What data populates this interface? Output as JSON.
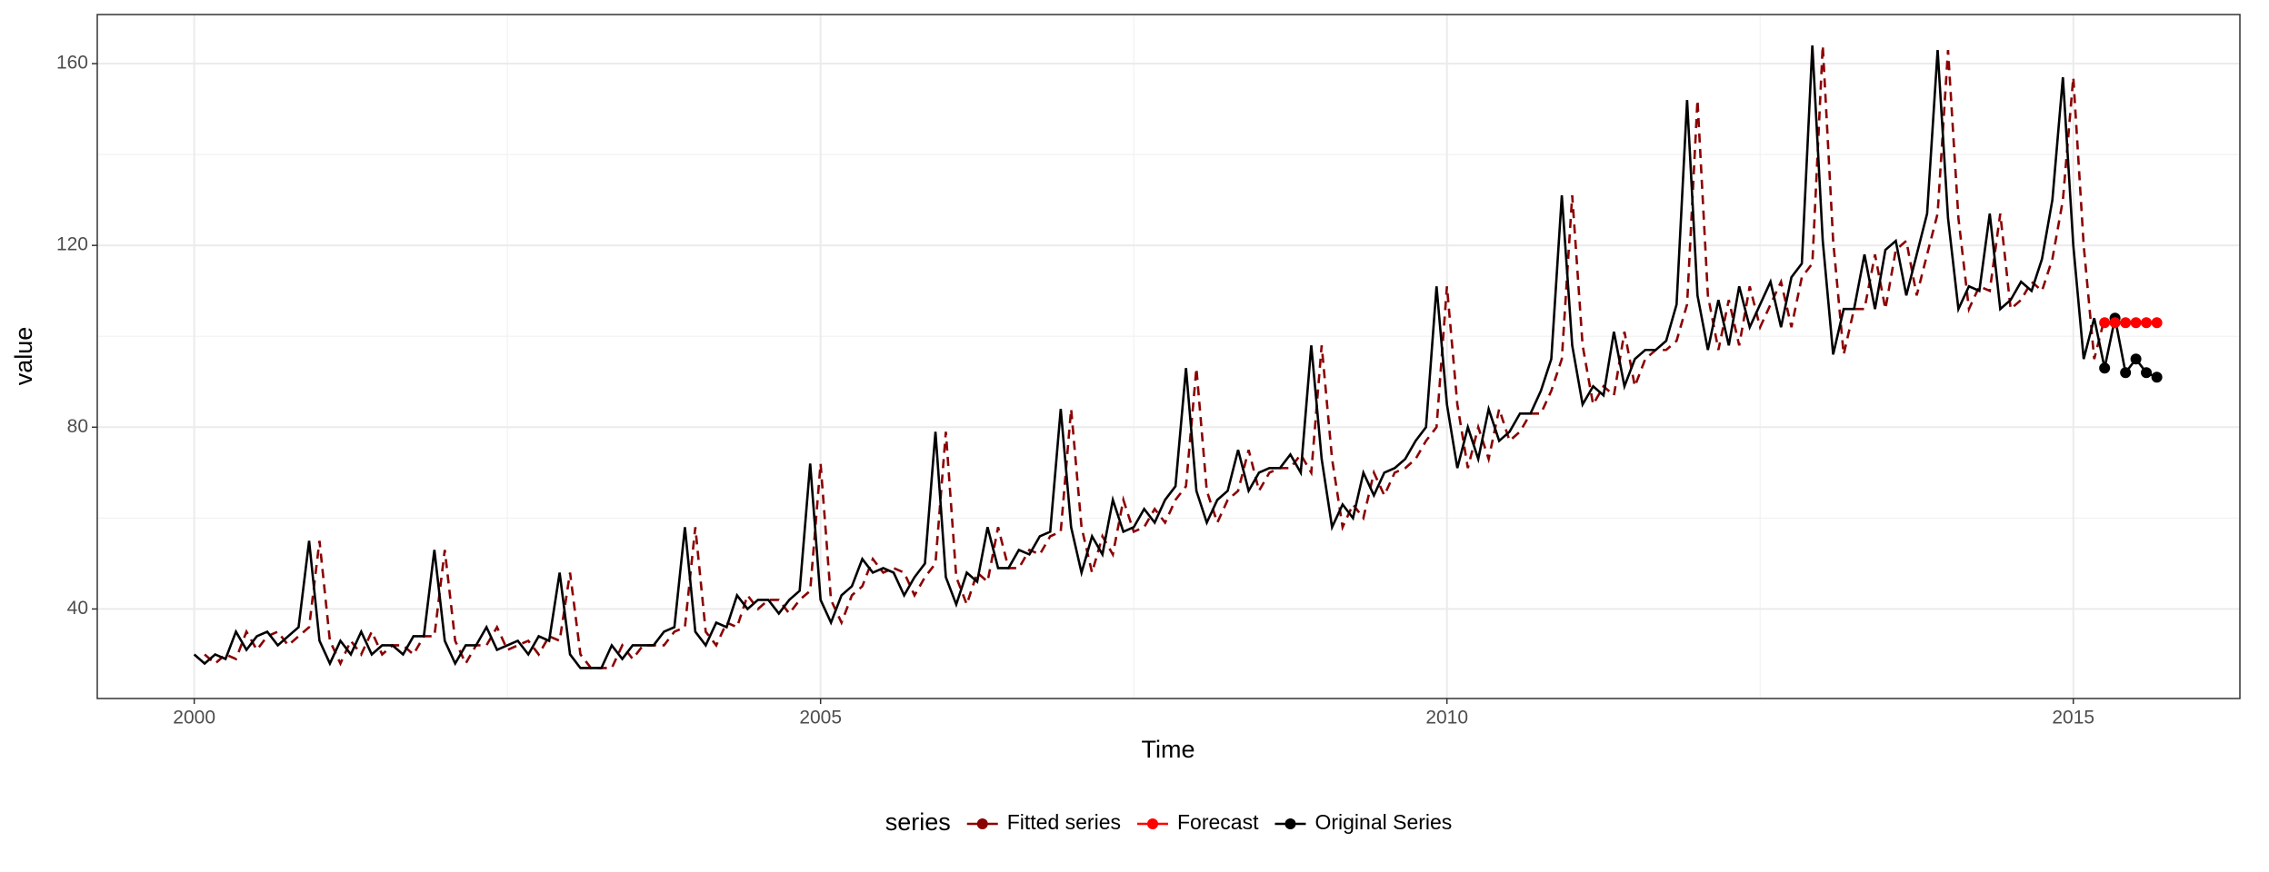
{
  "chart_data": {
    "type": "line",
    "x_label": "Time",
    "y_label": "value",
    "legend_title": "series",
    "xlim": [
      1999.226,
      2016.33
    ],
    "ylim": [
      20.3,
      170.8
    ],
    "xticks": [
      2000,
      2005,
      2010,
      2015
    ],
    "yticks": [
      40,
      80,
      120,
      160
    ],
    "minor_xticks": [
      2002.5,
      2007.5,
      2012.5
    ],
    "minor_yticks": [
      60,
      100,
      140
    ],
    "grid": true,
    "legend_position": "bottom",
    "series": [
      {
        "name": "Fitted series",
        "color": "#8b0000",
        "linetype": "dashed",
        "points": false,
        "x": [
          2000.083,
          2000.167,
          2000.25,
          2000.333,
          2000.417,
          2000.5,
          2000.583,
          2000.667,
          2000.75,
          2000.833,
          2000.917,
          2001,
          2001.083,
          2001.167,
          2001.25,
          2001.333,
          2001.417,
          2001.5,
          2001.583,
          2001.667,
          2001.75,
          2001.833,
          2001.917,
          2002,
          2002.083,
          2002.167,
          2002.25,
          2002.333,
          2002.417,
          2002.5,
          2002.583,
          2002.667,
          2002.75,
          2002.833,
          2002.917,
          2003,
          2003.083,
          2003.167,
          2003.25,
          2003.333,
          2003.417,
          2003.5,
          2003.583,
          2003.667,
          2003.75,
          2003.833,
          2003.917,
          2004,
          2004.083,
          2004.167,
          2004.25,
          2004.333,
          2004.417,
          2004.5,
          2004.583,
          2004.667,
          2004.75,
          2004.833,
          2004.917,
          2005,
          2005.083,
          2005.167,
          2005.25,
          2005.333,
          2005.417,
          2005.5,
          2005.583,
          2005.667,
          2005.75,
          2005.833,
          2005.917,
          2006,
          2006.083,
          2006.167,
          2006.25,
          2006.333,
          2006.417,
          2006.5,
          2006.583,
          2006.667,
          2006.75,
          2006.833,
          2006.917,
          2007,
          2007.083,
          2007.167,
          2007.25,
          2007.333,
          2007.417,
          2007.5,
          2007.583,
          2007.667,
          2007.75,
          2007.833,
          2007.917,
          2008,
          2008.083,
          2008.167,
          2008.25,
          2008.333,
          2008.417,
          2008.5,
          2008.583,
          2008.667,
          2008.75,
          2008.833,
          2008.917,
          2009,
          2009.083,
          2009.167,
          2009.25,
          2009.333,
          2009.417,
          2009.5,
          2009.583,
          2009.667,
          2009.75,
          2009.833,
          2009.917,
          2010,
          2010.083,
          2010.167,
          2010.25,
          2010.333,
          2010.417,
          2010.5,
          2010.583,
          2010.667,
          2010.75,
          2010.833,
          2010.917,
          2011,
          2011.083,
          2011.167,
          2011.25,
          2011.333,
          2011.417,
          2011.5,
          2011.583,
          2011.667,
          2011.75,
          2011.833,
          2011.917,
          2012,
          2012.083,
          2012.167,
          2012.25,
          2012.333,
          2012.417,
          2012.5,
          2012.583,
          2012.667,
          2012.75,
          2012.833,
          2012.917,
          2013,
          2013.083,
          2013.167,
          2013.25,
          2013.333,
          2013.417,
          2013.5,
          2013.583,
          2013.667,
          2013.75,
          2013.833,
          2013.917,
          2014,
          2014.083,
          2014.167,
          2014.25,
          2014.333,
          2014.417,
          2014.5,
          2014.583,
          2014.667,
          2014.75,
          2014.833,
          2014.917,
          2015,
          2015.083,
          2015.167,
          2015.25
        ],
        "values": [
          30,
          28,
          30,
          29,
          35,
          31,
          34,
          35,
          32,
          34,
          36,
          55,
          33,
          28,
          33,
          30,
          35,
          30,
          32,
          32,
          30,
          34,
          34,
          53,
          33,
          28,
          32,
          32,
          36,
          31,
          32,
          33,
          30,
          34,
          33,
          48,
          30,
          27,
          27,
          27,
          32,
          29,
          32,
          32,
          32,
          35,
          36,
          58,
          35,
          32,
          37,
          36,
          43,
          40,
          42,
          42,
          39,
          42,
          44,
          72,
          42,
          37,
          43,
          45,
          51,
          48,
          49,
          48,
          43,
          47,
          50,
          79,
          47,
          41,
          48,
          46,
          58,
          49,
          49,
          53,
          52,
          56,
          57,
          84,
          58,
          48,
          56,
          52,
          64,
          57,
          58,
          62,
          59,
          64,
          67,
          93,
          66,
          59,
          64,
          66,
          75,
          66,
          70,
          71,
          71,
          74,
          70,
          98,
          73,
          58,
          63,
          60,
          70,
          65,
          70,
          71,
          73,
          77,
          80,
          111,
          85,
          71,
          80,
          73,
          84,
          77,
          79,
          83,
          83,
          88,
          95,
          131,
          98,
          85,
          89,
          87,
          101,
          89,
          95,
          97,
          97,
          99,
          107,
          152,
          109,
          97,
          108,
          98,
          111,
          102,
          107,
          112,
          102,
          113,
          116,
          164,
          121,
          96,
          106,
          106,
          118,
          106,
          119,
          121,
          109,
          118,
          127,
          163,
          126,
          106,
          111,
          110,
          127,
          106,
          108,
          112,
          110,
          117,
          130,
          157,
          120,
          95,
          104
        ]
      },
      {
        "name": "Forecast",
        "color": "#ff0000",
        "linetype": "solid",
        "points": true,
        "x": [
          2015.25,
          2015.333,
          2015.417,
          2015.5,
          2015.583,
          2015.667
        ],
        "values": [
          103,
          103,
          103,
          103,
          103,
          103
        ]
      },
      {
        "name": "Original Series",
        "color": "#000000",
        "linetype": "solid",
        "points": false,
        "x": [
          2000,
          2000.083,
          2000.167,
          2000.25,
          2000.333,
          2000.417,
          2000.5,
          2000.583,
          2000.667,
          2000.75,
          2000.833,
          2000.917,
          2001,
          2001.083,
          2001.167,
          2001.25,
          2001.333,
          2001.417,
          2001.5,
          2001.583,
          2001.667,
          2001.75,
          2001.833,
          2001.917,
          2002,
          2002.083,
          2002.167,
          2002.25,
          2002.333,
          2002.417,
          2002.5,
          2002.583,
          2002.667,
          2002.75,
          2002.833,
          2002.917,
          2003,
          2003.083,
          2003.167,
          2003.25,
          2003.333,
          2003.417,
          2003.5,
          2003.583,
          2003.667,
          2003.75,
          2003.833,
          2003.917,
          2004,
          2004.083,
          2004.167,
          2004.25,
          2004.333,
          2004.417,
          2004.5,
          2004.583,
          2004.667,
          2004.75,
          2004.833,
          2004.917,
          2005,
          2005.083,
          2005.167,
          2005.25,
          2005.333,
          2005.417,
          2005.5,
          2005.583,
          2005.667,
          2005.75,
          2005.833,
          2005.917,
          2006,
          2006.083,
          2006.167,
          2006.25,
          2006.333,
          2006.417,
          2006.5,
          2006.583,
          2006.667,
          2006.75,
          2006.833,
          2006.917,
          2007,
          2007.083,
          2007.167,
          2007.25,
          2007.333,
          2007.417,
          2007.5,
          2007.583,
          2007.667,
          2007.75,
          2007.833,
          2007.917,
          2008,
          2008.083,
          2008.167,
          2008.25,
          2008.333,
          2008.417,
          2008.5,
          2008.583,
          2008.667,
          2008.75,
          2008.833,
          2008.917,
          2009,
          2009.083,
          2009.167,
          2009.25,
          2009.333,
          2009.417,
          2009.5,
          2009.583,
          2009.667,
          2009.75,
          2009.833,
          2009.917,
          2010,
          2010.083,
          2010.167,
          2010.25,
          2010.333,
          2010.417,
          2010.5,
          2010.583,
          2010.667,
          2010.75,
          2010.833,
          2010.917,
          2011,
          2011.083,
          2011.167,
          2011.25,
          2011.333,
          2011.417,
          2011.5,
          2011.583,
          2011.667,
          2011.75,
          2011.833,
          2011.917,
          2012,
          2012.083,
          2012.167,
          2012.25,
          2012.333,
          2012.417,
          2012.5,
          2012.583,
          2012.667,
          2012.75,
          2012.833,
          2012.917,
          2013,
          2013.083,
          2013.167,
          2013.25,
          2013.333,
          2013.417,
          2013.5,
          2013.583,
          2013.667,
          2013.75,
          2013.833,
          2013.917,
          2014,
          2014.083,
          2014.167,
          2014.25,
          2014.333,
          2014.417,
          2014.5,
          2014.583,
          2014.667,
          2014.75,
          2014.833,
          2014.917,
          2015,
          2015.083,
          2015.167,
          2015.25,
          2015.333,
          2015.417,
          2015.5,
          2015.583,
          2015.667
        ],
        "values": [
          30,
          28,
          30,
          29,
          35,
          31,
          34,
          35,
          32,
          34,
          36,
          55,
          33,
          28,
          33,
          30,
          35,
          30,
          32,
          32,
          30,
          34,
          34,
          53,
          33,
          28,
          32,
          32,
          36,
          31,
          32,
          33,
          30,
          34,
          33,
          48,
          30,
          27,
          27,
          27,
          32,
          29,
          32,
          32,
          32,
          35,
          36,
          58,
          35,
          32,
          37,
          36,
          43,
          40,
          42,
          42,
          39,
          42,
          44,
          72,
          42,
          37,
          43,
          45,
          51,
          48,
          49,
          48,
          43,
          47,
          50,
          79,
          47,
          41,
          48,
          46,
          58,
          49,
          49,
          53,
          52,
          56,
          57,
          84,
          58,
          48,
          56,
          52,
          64,
          57,
          58,
          62,
          59,
          64,
          67,
          93,
          66,
          59,
          64,
          66,
          75,
          66,
          70,
          71,
          71,
          74,
          70,
          98,
          73,
          58,
          63,
          60,
          70,
          65,
          70,
          71,
          73,
          77,
          80,
          111,
          85,
          71,
          80,
          73,
          84,
          77,
          79,
          83,
          83,
          88,
          95,
          131,
          98,
          85,
          89,
          87,
          101,
          89,
          95,
          97,
          97,
          99,
          107,
          152,
          109,
          97,
          108,
          98,
          111,
          102,
          107,
          112,
          102,
          113,
          116,
          164,
          121,
          96,
          106,
          106,
          118,
          106,
          119,
          121,
          109,
          118,
          127,
          163,
          126,
          106,
          111,
          110,
          127,
          106,
          108,
          112,
          110,
          117,
          130,
          157,
          120,
          95,
          104,
          93,
          104,
          92,
          95,
          92,
          91
        ]
      }
    ]
  }
}
